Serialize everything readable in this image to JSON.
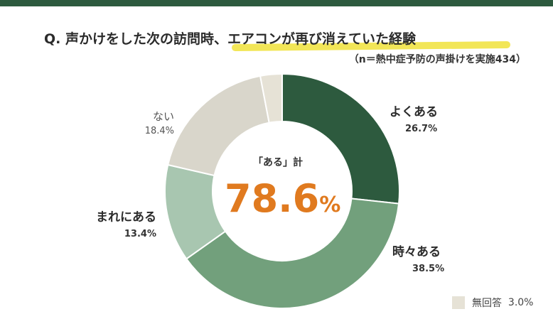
{
  "header": {
    "title": "Q. 声かけをした次の訪問時、エアコンが再び消えていた経験",
    "subtitle": "（n＝熱中症予防の声掛けを実施434）"
  },
  "chart_data": {
    "type": "pie",
    "variant": "donut",
    "categories": [
      "よくある",
      "時々ある",
      "まれにある",
      "ない",
      "無回答"
    ],
    "values": [
      26.7,
      38.5,
      13.4,
      18.4,
      3.0
    ],
    "value_labels": [
      "26.7%",
      "38.5%",
      "13.4%",
      "18.4%",
      "3.0%"
    ],
    "colors": [
      "#2d5a3e",
      "#72a07c",
      "#a8c6b0",
      "#d9d6cb",
      "#e6e2d6"
    ],
    "start": "top, clockwise",
    "center_caption": "「ある」計",
    "center_value": "78.6",
    "center_unit": "%",
    "legend": {
      "label": "無回答",
      "value": "3.0%",
      "placement": "bottom-right"
    }
  }
}
